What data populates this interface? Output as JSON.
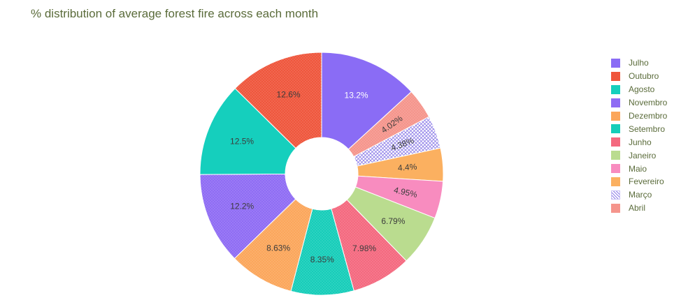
{
  "chart_data": {
    "type": "pie",
    "title": "% distribution of average forest fire across each month",
    "hole": true,
    "legend_position": "right",
    "slices": [
      {
        "label": "Julho",
        "value": 13.2,
        "text": "13.2%",
        "color": "#8a6cf5",
        "text_color": "#ffffff",
        "pattern": "none"
      },
      {
        "label": "Abril",
        "value": 4.02,
        "text": "4.02%",
        "color": "#f5958c",
        "text_color": "#3c3c3c",
        "pattern": "dots"
      },
      {
        "label": "Março",
        "value": 4.38,
        "text": "4.38%",
        "color": "#a898f2",
        "text_color": "#3c3c3c",
        "pattern": "crosshatch"
      },
      {
        "label": "Fevereiro",
        "value": 4.4,
        "text": "4.4%",
        "color": "#fbb060",
        "text_color": "#3c3c3c",
        "pattern": "none"
      },
      {
        "label": "Maio",
        "value": 4.95,
        "text": "4.95%",
        "color": "#f88cbf",
        "text_color": "#3c3c3c",
        "pattern": "none"
      },
      {
        "label": "Janeiro",
        "value": 6.79,
        "text": "6.79%",
        "color": "#badc8f",
        "text_color": "#3c3c3c",
        "pattern": "none"
      },
      {
        "label": "Junho",
        "value": 7.98,
        "text": "7.98%",
        "color": "#f4697f",
        "text_color": "#3c3c3c",
        "pattern": "dots"
      },
      {
        "label": "Setembro",
        "value": 8.35,
        "text": "8.35%",
        "color": "#16cdb9",
        "text_color": "#3c3c3c",
        "pattern": "dots"
      },
      {
        "label": "Dezembro",
        "value": 8.63,
        "text": "8.63%",
        "color": "#fba65b",
        "text_color": "#3c3c3c",
        "pattern": "dots"
      },
      {
        "label": "Novembro",
        "value": 12.2,
        "text": "12.2%",
        "color": "#8f6cf4",
        "text_color": "#3c3c3c",
        "pattern": "dots"
      },
      {
        "label": "Agosto",
        "value": 12.5,
        "text": "12.5%",
        "color": "#15cfbd",
        "text_color": "#3c3c3c",
        "pattern": "none"
      },
      {
        "label": "Outubro",
        "value": 12.6,
        "text": "12.6%",
        "color": "#ef563c",
        "text_color": "#3c3c3c",
        "pattern": "dots"
      }
    ],
    "legend_order": [
      "Julho",
      "Outubro",
      "Agosto",
      "Novembro",
      "Dezembro",
      "Setembro",
      "Junho",
      "Janeiro",
      "Maio",
      "Fevereiro",
      "Março",
      "Abril"
    ]
  }
}
